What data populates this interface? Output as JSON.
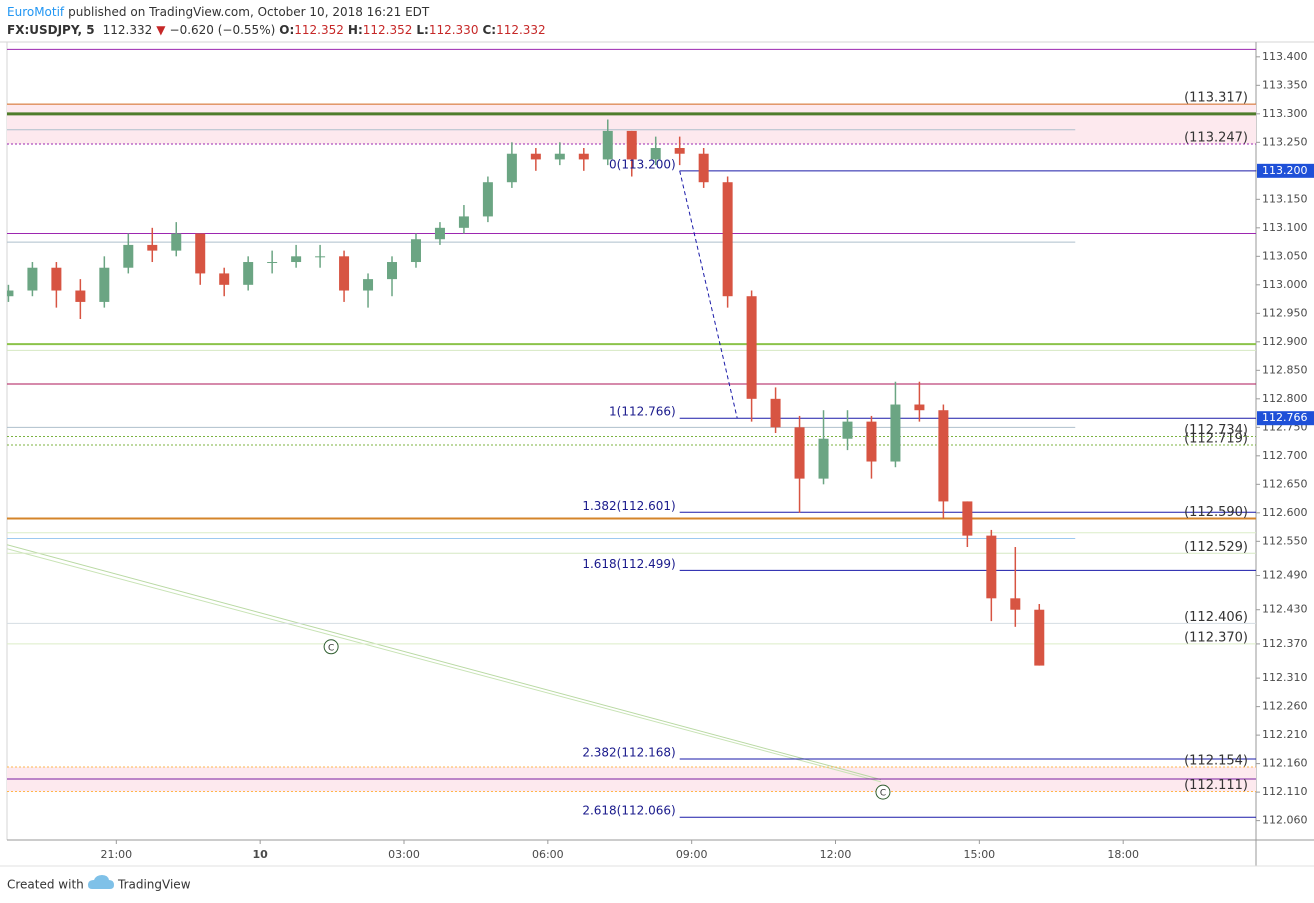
{
  "header": {
    "author": "EuroMotif",
    "published": "published on TradingView.com, October 10, 2018 16:21 EDT",
    "symbol": "FX:USDJPY, 5",
    "last": "112.332",
    "arrow": "▼",
    "change": "−0.620 (−0.55%)",
    "ohlc": [
      {
        "label": "O:",
        "value": "112.352"
      },
      {
        "label": "H:",
        "value": "112.352"
      },
      {
        "label": "L:",
        "value": "112.330"
      },
      {
        "label": "C:",
        "value": "112.332"
      }
    ]
  },
  "footer": {
    "created": "Created with",
    "brand": "TradingView"
  },
  "chart_data": {
    "type": "candlestick",
    "up_color": "#6ba583",
    "down_color": "#d75442",
    "xlim": [
      18.72,
      44.77
    ],
    "ylim": [
      112.026,
      113.426
    ],
    "xticks": [
      {
        "value": 21,
        "label": "21:00"
      },
      {
        "value": 24,
        "label": "10"
      },
      {
        "value": 27,
        "label": "03:00"
      },
      {
        "value": 30,
        "label": "06:00"
      },
      {
        "value": 33,
        "label": "09:00"
      },
      {
        "value": 36,
        "label": "12:00"
      },
      {
        "value": 39,
        "label": "15:00"
      },
      {
        "value": 42,
        "label": "18:00"
      }
    ],
    "yticks": [
      {
        "value": 113.4,
        "label": "113.400"
      },
      {
        "value": 113.35,
        "label": "113.350"
      },
      {
        "value": 113.3,
        "label": "113.300"
      },
      {
        "value": 113.25,
        "label": "113.250"
      },
      {
        "value": 113.2,
        "label": "113.200"
      },
      {
        "value": 113.15,
        "label": "113.150"
      },
      {
        "value": 113.1,
        "label": "113.100"
      },
      {
        "value": 113.05,
        "label": "113.050"
      },
      {
        "value": 113.0,
        "label": "113.000"
      },
      {
        "value": 112.95,
        "label": "112.950"
      },
      {
        "value": 112.9,
        "label": "112.900"
      },
      {
        "value": 112.85,
        "label": "112.850"
      },
      {
        "value": 112.8,
        "label": "112.800"
      },
      {
        "value": 112.75,
        "label": "112.750"
      },
      {
        "value": 112.7,
        "label": "112.700"
      },
      {
        "value": 112.65,
        "label": "112.650"
      },
      {
        "value": 112.6,
        "label": "112.600"
      },
      {
        "value": 112.55,
        "label": "112.550"
      },
      {
        "value": 112.49,
        "label": "112.490"
      },
      {
        "value": 112.43,
        "label": "112.430"
      },
      {
        "value": 112.37,
        "label": "112.370"
      },
      {
        "value": 112.31,
        "label": "112.310"
      },
      {
        "value": 112.26,
        "label": "112.260"
      },
      {
        "value": 112.21,
        "label": "112.210"
      },
      {
        "value": 112.16,
        "label": "112.160"
      },
      {
        "value": 112.11,
        "label": "112.110"
      },
      {
        "value": 112.06,
        "label": "112.060"
      }
    ],
    "x": [
      18.75,
      19.25,
      19.75,
      20.25,
      20.75,
      21.25,
      21.75,
      22.25,
      22.75,
      23.25,
      23.75,
      24.25,
      24.75,
      25.25,
      25.75,
      26.25,
      26.75,
      27.25,
      27.75,
      28.25,
      28.75,
      29.25,
      29.75,
      30.25,
      30.75,
      31.25,
      31.75,
      32.25,
      32.75,
      33.25,
      33.75,
      34.25,
      34.75,
      35.25,
      35.75,
      36.25,
      36.75,
      37.25,
      37.75,
      38.25,
      38.75,
      39.25,
      39.75,
      40.25
    ],
    "open": [
      112.98,
      112.99,
      113.03,
      112.99,
      112.97,
      113.03,
      113.07,
      113.06,
      113.09,
      113.02,
      113.0,
      113.04,
      113.04,
      113.05,
      113.05,
      112.99,
      113.01,
      113.04,
      113.08,
      113.1,
      113.12,
      113.18,
      113.23,
      113.22,
      113.23,
      113.22,
      113.27,
      113.22,
      113.24,
      113.23,
      113.18,
      112.98,
      112.8,
      112.75,
      112.66,
      112.73,
      112.76,
      112.69,
      112.79,
      112.78,
      112.62,
      112.56,
      112.45,
      112.43
    ],
    "high": [
      113.0,
      113.04,
      113.04,
      113.01,
      113.05,
      113.09,
      113.1,
      113.11,
      113.09,
      113.03,
      113.05,
      113.06,
      113.07,
      113.07,
      113.06,
      113.02,
      113.05,
      113.09,
      113.11,
      113.14,
      113.19,
      113.25,
      113.24,
      113.25,
      113.24,
      113.29,
      113.27,
      113.26,
      113.26,
      113.24,
      113.19,
      112.99,
      112.82,
      112.77,
      112.78,
      112.78,
      112.77,
      112.83,
      112.83,
      112.79,
      112.62,
      112.57,
      112.54,
      112.44
    ],
    "low": [
      112.97,
      112.98,
      112.96,
      112.94,
      112.96,
      113.02,
      113.04,
      113.05,
      113.0,
      112.98,
      112.99,
      113.02,
      113.03,
      113.03,
      112.97,
      112.96,
      112.98,
      113.03,
      113.07,
      113.09,
      113.11,
      113.17,
      113.2,
      113.21,
      113.2,
      113.21,
      113.19,
      113.21,
      113.21,
      113.17,
      112.96,
      112.76,
      112.74,
      112.6,
      112.65,
      112.71,
      112.66,
      112.68,
      112.76,
      112.59,
      112.54,
      112.41,
      112.4,
      112.332
    ],
    "close": [
      112.99,
      113.03,
      112.99,
      112.97,
      113.03,
      113.07,
      113.06,
      113.09,
      113.02,
      113.0,
      113.04,
      113.04,
      113.05,
      113.05,
      112.99,
      113.01,
      113.04,
      113.08,
      113.1,
      113.12,
      113.18,
      113.23,
      113.22,
      113.23,
      113.22,
      113.27,
      113.22,
      113.24,
      113.23,
      113.18,
      112.98,
      112.8,
      112.75,
      112.66,
      112.73,
      112.76,
      112.69,
      112.79,
      112.78,
      112.62,
      112.56,
      112.45,
      112.43,
      112.332
    ],
    "zones": [
      {
        "from": 113.317,
        "to": 113.247,
        "color": "#fde9ee"
      },
      {
        "from": 112.154,
        "to": 112.111,
        "color": "#fde9ee"
      }
    ],
    "levels": [
      {
        "value": 113.413,
        "color": "#9c27b0",
        "width": 1
      },
      {
        "value": 113.317,
        "color": "#d2691e",
        "width": 1,
        "label": "(113.317)",
        "label_color": "#b71c1c"
      },
      {
        "value": 113.3,
        "color": "#4e7d2b",
        "width": 3
      },
      {
        "value": 113.272,
        "color": "#aebfcc",
        "width": 1,
        "end": 41
      },
      {
        "value": 113.247,
        "color": "#9c27b0",
        "width": 1,
        "dash": true,
        "label": "(113.247)",
        "label_color": "#b71c1c"
      },
      {
        "value": 113.09,
        "color": "#9c27b0",
        "width": 1
      },
      {
        "value": 113.075,
        "color": "#aebfcc",
        "width": 1,
        "end": 41
      },
      {
        "value": 112.896,
        "color": "#8bc34a",
        "width": 2
      },
      {
        "value": 112.885,
        "color": "#d6e8c3",
        "width": 1
      },
      {
        "value": 112.826,
        "color": "#ad1457",
        "width": 1
      },
      {
        "value": 112.75,
        "color": "#aebfcc",
        "width": 1,
        "end": 41
      },
      {
        "value": 112.734,
        "color": "#7cb342",
        "width": 1,
        "dash": true,
        "label": "(112.734)",
        "label_color": "#689f38"
      },
      {
        "value": 112.719,
        "color": "#7cb342",
        "width": 1,
        "dash": true,
        "label": "(112.719)",
        "label_color": "#689f38"
      },
      {
        "value": 112.59,
        "color": "#d4842a",
        "width": 2,
        "label": "(112.590)",
        "label_color": "#d0d4d8"
      },
      {
        "value": 112.565,
        "color": "#dcedc8",
        "width": 1
      },
      {
        "value": 112.555,
        "color": "#9cc9f0",
        "width": 1,
        "end": 41
      },
      {
        "value": 112.529,
        "color": "#d6e8c3",
        "width": 1,
        "label": "(112.529)",
        "label_color": "#aed581"
      },
      {
        "value": 112.406,
        "color": "#d5dde2",
        "width": 1,
        "label": "(112.406)",
        "label_color": "#b0bec5"
      },
      {
        "value": 112.37,
        "color": "#dcedc8",
        "width": 1,
        "label": "(112.370)",
        "label_color": "#c5e1a5"
      },
      {
        "value": 112.154,
        "color": "#ffb74d",
        "width": 1,
        "dash": true,
        "label": "(112.154)",
        "label_color": "#f9a825"
      },
      {
        "value": 112.133,
        "color": "#7b1fa2",
        "width": 1
      },
      {
        "value": 112.111,
        "color": "#ffb74d",
        "width": 1,
        "dash": true,
        "label": "(112.111)",
        "label_color": "#f9a825"
      }
    ],
    "fib": {
      "start": 32.75,
      "color": "#1a1aa8",
      "levels": [
        {
          "label": "0(113.200)",
          "value": 113.2
        },
        {
          "label": "1(112.766)",
          "value": 112.766
        },
        {
          "label": "1.382(112.601)",
          "value": 112.601
        },
        {
          "label": "1.618(112.499)",
          "value": 112.499
        },
        {
          "label": "2.382(112.168)",
          "value": 112.168
        },
        {
          "label": "2.618(112.066)",
          "value": 112.066
        }
      ],
      "trend": {
        "x": [
          32.75,
          33.95
        ],
        "y": [
          113.2,
          112.766
        ]
      }
    },
    "badges": [
      {
        "value": 113.2,
        "label": "113.200",
        "color": "#1e50d8"
      },
      {
        "value": 112.766,
        "label": "112.766",
        "color": "#1e50d8"
      }
    ],
    "trendlines": [
      {
        "x": [
          18.72,
          36.95
        ],
        "y": [
          112.544,
          112.132
        ],
        "color": "#b9d9a3"
      },
      {
        "x": [
          18.72,
          36.95
        ],
        "y": [
          112.537,
          112.128
        ],
        "color": "#c8e3b5"
      }
    ],
    "annotations": [
      {
        "text": "C",
        "x": 25.48,
        "y": 112.365
      },
      {
        "text": "C",
        "x": 36.99,
        "y": 112.11
      }
    ]
  }
}
